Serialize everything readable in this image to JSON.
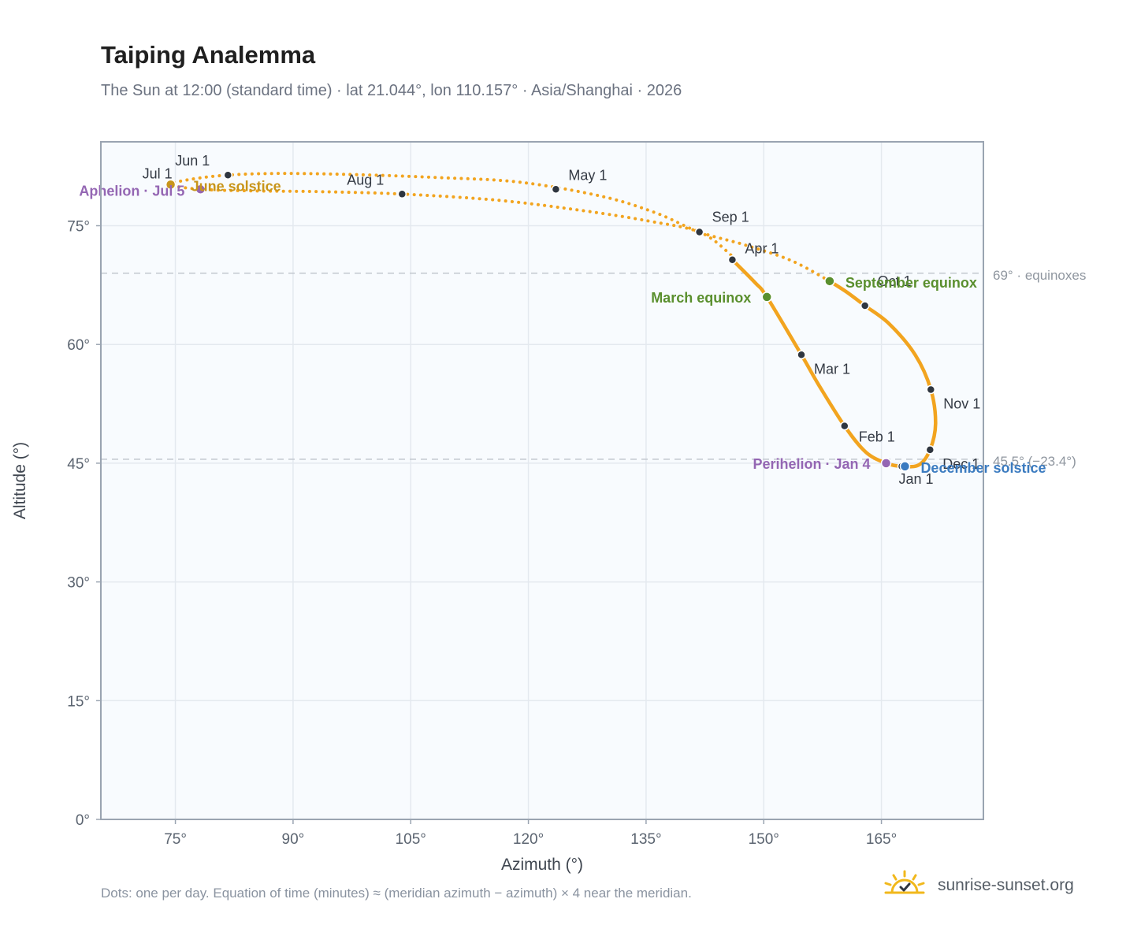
{
  "header": {
    "title": "Taiping Analemma",
    "subtitle": "The Sun at 12:00 (standard time) · lat 21.044°, lon 110.157° · Asia/Shanghai · 2026"
  },
  "footer": {
    "note": "Dots: one per day. Equation of time (minutes) ≈ (meridian azimuth − azimuth) × 4 near the meridian.",
    "brand": "sunrise-sunset.org",
    "brand_icon": "sun-check-icon"
  },
  "colors": {
    "curve": "#f2a41f",
    "month_dot": "#2f3640",
    "equinox": "#5a8f2e",
    "june_solstice": "#c8951a",
    "december_solstice": "#3b7bc0",
    "apsis": "#9466b3",
    "plot_bg": "#f8fbfe",
    "grid": "#e4e9ef",
    "frame": "#9aa4b1",
    "ref_line": "#c2c8cf"
  },
  "chart_data": {
    "type": "scatter",
    "title": "Taiping Analemma",
    "xlabel": "Azimuth (°)",
    "ylabel": "Altitude (°)",
    "xlim": [
      65.5,
      178
    ],
    "ylim": [
      0,
      85.6
    ],
    "xticks": [
      75,
      90,
      105,
      120,
      135,
      150,
      165
    ],
    "xtick_labels": [
      "75°",
      "90°",
      "105°",
      "120°",
      "135°",
      "150°",
      "165°"
    ],
    "yticks": [
      0,
      15,
      30,
      45,
      60,
      75
    ],
    "ytick_labels": [
      "0°",
      "15°",
      "30°",
      "45°",
      "60°",
      "75°"
    ],
    "grid": true,
    "month_points": [
      {
        "label": "Jan 1",
        "x": 167.6,
        "y": 44.6
      },
      {
        "label": "Feb 1",
        "x": 160.3,
        "y": 49.7
      },
      {
        "label": "Mar 1",
        "x": 154.8,
        "y": 58.7
      },
      {
        "label": "Apr 1",
        "x": 146.0,
        "y": 70.7
      },
      {
        "label": "May 1",
        "x": 123.5,
        "y": 79.6
      },
      {
        "label": "Jun 1",
        "x": 81.7,
        "y": 81.4
      },
      {
        "label": "Jul 1",
        "x": 74.4,
        "y": 80.2
      },
      {
        "label": "Aug 1",
        "x": 103.9,
        "y": 79.0
      },
      {
        "label": "Sep 1",
        "x": 141.8,
        "y": 74.2
      },
      {
        "label": "Oct 1",
        "x": 162.9,
        "y": 64.9
      },
      {
        "label": "Nov 1",
        "x": 171.3,
        "y": 54.3
      },
      {
        "label": "Dec 1",
        "x": 171.2,
        "y": 46.7
      }
    ],
    "events": [
      {
        "key": "march_equinox",
        "label": "March equinox",
        "x": 150.4,
        "y": 66.0
      },
      {
        "key": "june_solstice",
        "label": "June solstice",
        "x": 74.4,
        "y": 80.2
      },
      {
        "key": "september_equinox",
        "label": "September equinox",
        "x": 158.4,
        "y": 68.0
      },
      {
        "key": "december_solstice",
        "label": "December solstice",
        "x": 168.0,
        "y": 44.6
      },
      {
        "key": "perihelion",
        "label": "Perihelion · Jan 4",
        "x": 165.6,
        "y": 45.0
      },
      {
        "key": "aphelion",
        "label": "Aphelion · Jul 5",
        "x": 78.2,
        "y": 79.6
      }
    ],
    "reference_lines": [
      {
        "y": 69.0,
        "label": "69° · equinoxes"
      },
      {
        "y": 45.5,
        "label": "45.5° (−23.4°)"
      }
    ],
    "curve_segments": [
      {
        "name": "winter",
        "style": "solid",
        "points": [
          [
            146.0,
            70.7
          ],
          [
            148.9,
            67.8
          ],
          [
            150.4,
            66.0
          ],
          [
            154.8,
            58.7
          ],
          [
            157.0,
            54.9
          ],
          [
            160.3,
            49.7
          ],
          [
            163.0,
            46.4
          ],
          [
            165.6,
            45.0
          ],
          [
            167.6,
            44.6
          ],
          [
            169.8,
            44.8
          ],
          [
            171.2,
            46.7
          ],
          [
            171.9,
            50.0
          ],
          [
            171.3,
            54.3
          ],
          [
            169.3,
            58.7
          ],
          [
            166.0,
            62.6
          ],
          [
            162.9,
            64.9
          ],
          [
            160.6,
            66.6
          ],
          [
            158.4,
            68.0
          ]
        ]
      },
      {
        "name": "summer",
        "style": "dotted",
        "points": [
          [
            158.4,
            68.0
          ],
          [
            153.5,
            70.6
          ],
          [
            147.5,
            72.6
          ],
          [
            141.8,
            74.2
          ],
          [
            136.3,
            76.6
          ],
          [
            129.4,
            78.7
          ],
          [
            118.9,
            80.5
          ],
          [
            108.1,
            81.1
          ],
          [
            96.4,
            81.5
          ],
          [
            87.6,
            81.6
          ],
          [
            81.7,
            81.4
          ],
          [
            77.2,
            80.9
          ],
          [
            74.4,
            80.2
          ],
          [
            78.2,
            79.6
          ],
          [
            85.2,
            79.4
          ],
          [
            93.7,
            79.3
          ],
          [
            103.9,
            79.0
          ],
          [
            116.3,
            78.2
          ],
          [
            127.0,
            76.9
          ],
          [
            135.3,
            75.6
          ],
          [
            141.8,
            74.2
          ],
          [
            145.5,
            71.6
          ],
          [
            146.0,
            70.7
          ]
        ]
      }
    ]
  }
}
